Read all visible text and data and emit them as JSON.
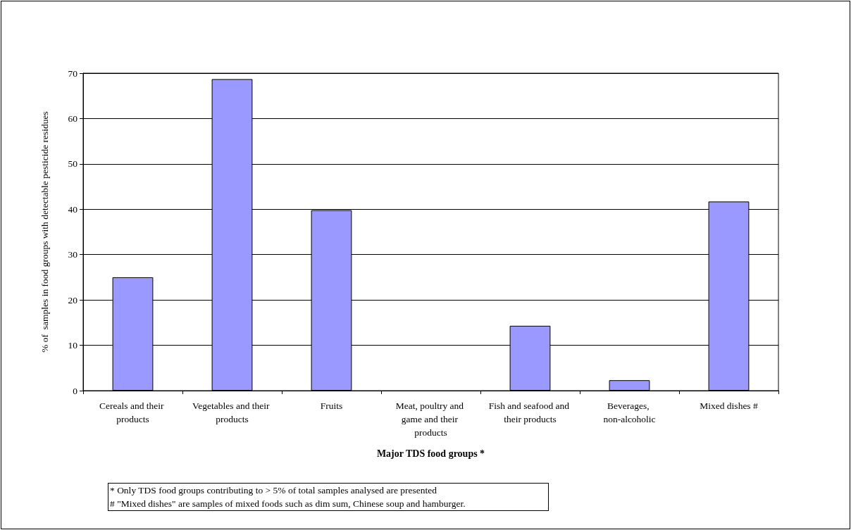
{
  "chart_data": {
    "type": "bar",
    "categories": [
      "Cereals and their products",
      "Vegetables and their products",
      "Fruits",
      "Meat, poultry and game and their products",
      "Fish and seafood and their products",
      "Beverages, non-alcoholic",
      "Mixed dishes #"
    ],
    "values": [
      25,
      68.7,
      39.8,
      0,
      14.3,
      2.3,
      41.7
    ],
    "color": "#9999ff",
    "xlabel": "Major TDS food groups *",
    "ylabel": "% of  samples in food groups with detectable pesticide residues",
    "ylim": [
      0,
      70
    ],
    "yticks": [
      0,
      10,
      20,
      30,
      40,
      50,
      60,
      70
    ],
    "grid": "y",
    "annotations": [
      "* Only TDS food groups contributing to > 5% of total samples analysed are presented",
      "# \"Mixed dishes\" are samples of mixed foods such as dim sum, Chinese soup and hamburger."
    ]
  }
}
